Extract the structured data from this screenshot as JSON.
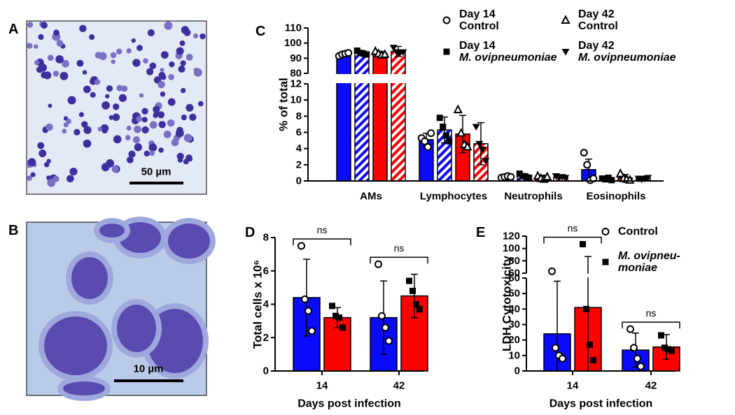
{
  "figure": {
    "panel_labels": [
      "A",
      "B",
      "C",
      "D",
      "E"
    ],
    "scale_bars": [
      "50 µm",
      "10 µm"
    ]
  },
  "chart_data": [
    {
      "type": "bar",
      "y_label": "% of total",
      "categories": [
        "AMs",
        "Lymphocytes",
        "Neutrophils",
        "Eosinophils"
      ],
      "segments": [
        {
          "ylim": [
            0,
            12
          ],
          "yticks": [
            0,
            2,
            4,
            6,
            8,
            10,
            12
          ]
        },
        {
          "ylim": [
            80,
            110
          ],
          "yticks": [
            80,
            90,
            100,
            110
          ]
        }
      ],
      "series": [
        {
          "name": "Day 14\nControl",
          "color": "#0a0aff",
          "hatch": false,
          "marker": "circle",
          "italic": false,
          "values": [
            92.5,
            5.1,
            0.5,
            1.4
          ],
          "errors": [
            1.3,
            0.8,
            0.2,
            1.3
          ],
          "points": [
            [
              91.5,
              92.5,
              93,
              93.5
            ],
            [
              5.3,
              4.9,
              4.2,
              5.9
            ],
            [
              0.4,
              0.5,
              0.6,
              0.5
            ],
            [
              3.5,
              2.0,
              0.1,
              0.3
            ]
          ]
        },
        {
          "name": "Day 14\nM. ovipneumoniae",
          "color": "#0a0aff",
          "hatch": true,
          "marker": "square",
          "italic": true,
          "values": [
            93.5,
            6.3,
            0.6,
            0.3
          ],
          "errors": [
            1.5,
            1.6,
            0.3,
            0.2
          ],
          "points": [
            [
              95,
              93.5,
              93,
              92.5
            ],
            [
              7.8,
              6.7,
              5.6,
              4.9
            ],
            [
              0.9,
              0.6,
              0.5,
              0.4
            ],
            [
              0.3,
              0.2,
              0.4,
              0.1
            ]
          ]
        },
        {
          "name": "Day 42\nControl",
          "color": "#ff0000",
          "hatch": false,
          "marker": "triangle",
          "italic": false,
          "values": [
            93,
            5.8,
            0.4,
            0.4
          ],
          "errors": [
            1.5,
            2.3,
            0.3,
            0.4
          ],
          "points": [
            [
              94.5,
              93,
              92,
              92.5
            ],
            [
              8.8,
              5.9,
              4.5,
              4.2
            ],
            [
              0.6,
              0.3,
              0.2,
              0.5
            ],
            [
              0.9,
              0.3,
              0.2,
              0.1
            ]
          ]
        },
        {
          "name": "Day 42\nM. ovipneumoniae",
          "color": "#ff0000",
          "hatch": true,
          "marker": "triangle-down",
          "italic": true,
          "values": [
            94.5,
            4.6,
            0.5,
            0.3
          ],
          "errors": [
            3.3,
            2.6,
            0.2,
            0.2
          ],
          "points": [
            [
              97,
              94,
              93.5,
              94
            ],
            [
              6.7,
              4.6,
              3.9,
              2.5
            ],
            [
              0.6,
              0.4,
              0.5,
              0.4
            ],
            [
              0.3,
              0.2,
              0.3,
              0.4
            ]
          ]
        }
      ]
    },
    {
      "type": "bar",
      "y_label": "Total cells x 10⁶",
      "x_label": "Days post infection",
      "categories": [
        "14",
        "42"
      ],
      "segments": [
        {
          "ylim": [
            0,
            8
          ],
          "yticks": [
            0,
            2,
            4,
            6,
            8
          ]
        }
      ],
      "series": [
        {
          "color": "#0a0aff",
          "hatch": false,
          "marker": "circle",
          "values": [
            4.4,
            3.2
          ],
          "errors": [
            2.3,
            2.2
          ],
          "points": [
            [
              7.5,
              4.3,
              3.6,
              2.4
            ],
            [
              6.4,
              3.3,
              2.6,
              1.8
            ]
          ]
        },
        {
          "color": "#ff0000",
          "hatch": false,
          "marker": "square",
          "values": [
            3.2,
            4.5
          ],
          "errors": [
            0.6,
            1.3
          ],
          "points": [
            [
              3.9,
              3.3,
              3.2,
              2.6
            ],
            [
              5.4,
              4.8,
              4.0,
              3.7
            ]
          ]
        }
      ],
      "annotations": [
        {
          "text": "ns",
          "category": 0
        },
        {
          "text": "ns",
          "category": 1
        }
      ]
    },
    {
      "type": "bar",
      "y_label": "LDH Cytotoxicity",
      "x_label": "Days post infection",
      "categories": [
        "14",
        "42"
      ],
      "segments": [
        {
          "ylim": [
            0,
            60
          ],
          "yticks": [
            0,
            10,
            20,
            30,
            40,
            50,
            60
          ]
        },
        {
          "ylim": [
            60,
            120
          ],
          "yticks": [
            60,
            80,
            100,
            120
          ]
        }
      ],
      "series": [
        {
          "name": "Control",
          "color": "#0a0aff",
          "hatch": false,
          "marker": "circle",
          "italic": false,
          "values": [
            24,
            13.5
          ],
          "errors": [
            34,
            11
          ],
          "points": [
            [
              63,
              15,
              10,
              8
            ],
            [
              27,
              15,
              8,
              3
            ]
          ]
        },
        {
          "name": "M. ovipneu-\nmoniae",
          "color": "#ff0000",
          "hatch": false,
          "marker": "square",
          "italic": true,
          "values": [
            41,
            15.5
          ],
          "errors": [
            46,
            8
          ],
          "points": [
            [
              107,
              40,
              17,
              7
            ],
            [
              23,
              15,
              14,
              13
            ]
          ]
        }
      ],
      "annotations": [
        {
          "text": "ns",
          "category": 0
        },
        {
          "text": "ns",
          "category": 1
        }
      ]
    }
  ]
}
